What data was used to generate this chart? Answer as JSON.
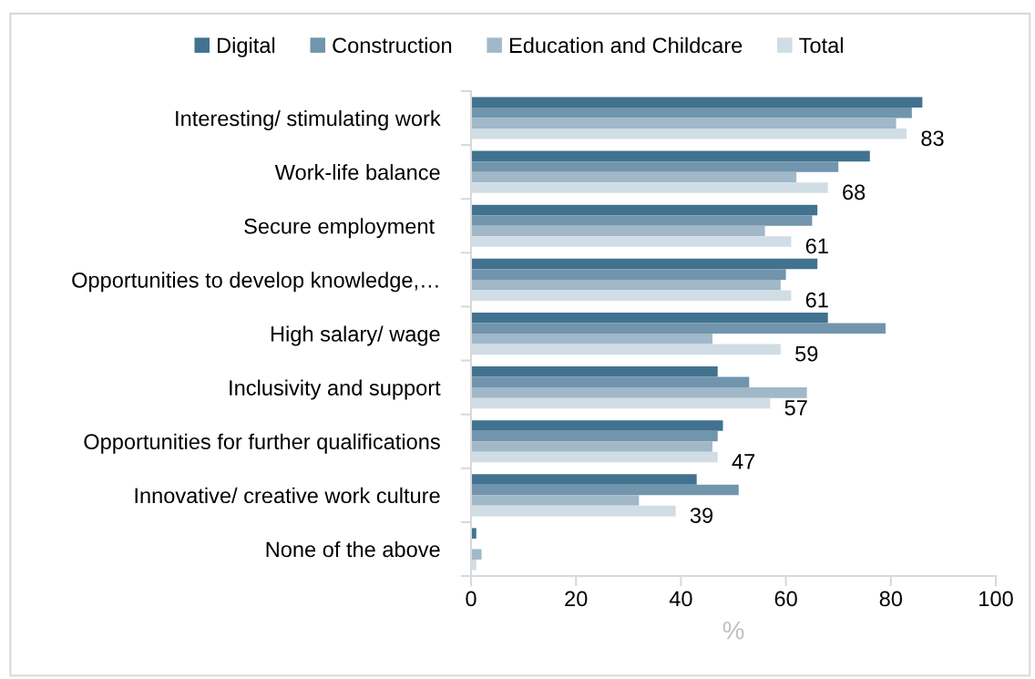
{
  "chart_data": {
    "type": "bar",
    "orientation": "horizontal",
    "xlabel": "%",
    "categories": [
      "Interesting/ stimulating work",
      "Work-life balance",
      "Secure employment ",
      "Opportunities to develop knowledge,…",
      "High salary/ wage",
      "Inclusivity and support",
      "Opportunities for further qualifications",
      "Innovative/ creative work culture",
      "None of the above"
    ],
    "series": [
      {
        "name": "Digital",
        "color": "#41728f",
        "values": [
          86,
          76,
          66,
          66,
          68,
          47,
          48,
          43,
          1
        ]
      },
      {
        "name": "Construction",
        "color": "#7195ad",
        "values": [
          84,
          70,
          65,
          60,
          79,
          53,
          47,
          51,
          0
        ]
      },
      {
        "name": "Education and Childcare",
        "color": "#a0b8c8",
        "values": [
          81,
          62,
          56,
          59,
          46,
          64,
          46,
          32,
          2
        ]
      },
      {
        "name": "Total",
        "color": "#d0dde5",
        "values": [
          83,
          68,
          61,
          61,
          59,
          57,
          47,
          39,
          1
        ],
        "value_labels": [
          "83",
          "68",
          "61",
          "61",
          "59",
          "57",
          "47",
          "39",
          null
        ]
      }
    ],
    "xlim": [
      0,
      100
    ],
    "xticks": [
      0,
      20,
      40,
      60,
      80,
      100
    ],
    "grid": false,
    "legend": "top"
  }
}
